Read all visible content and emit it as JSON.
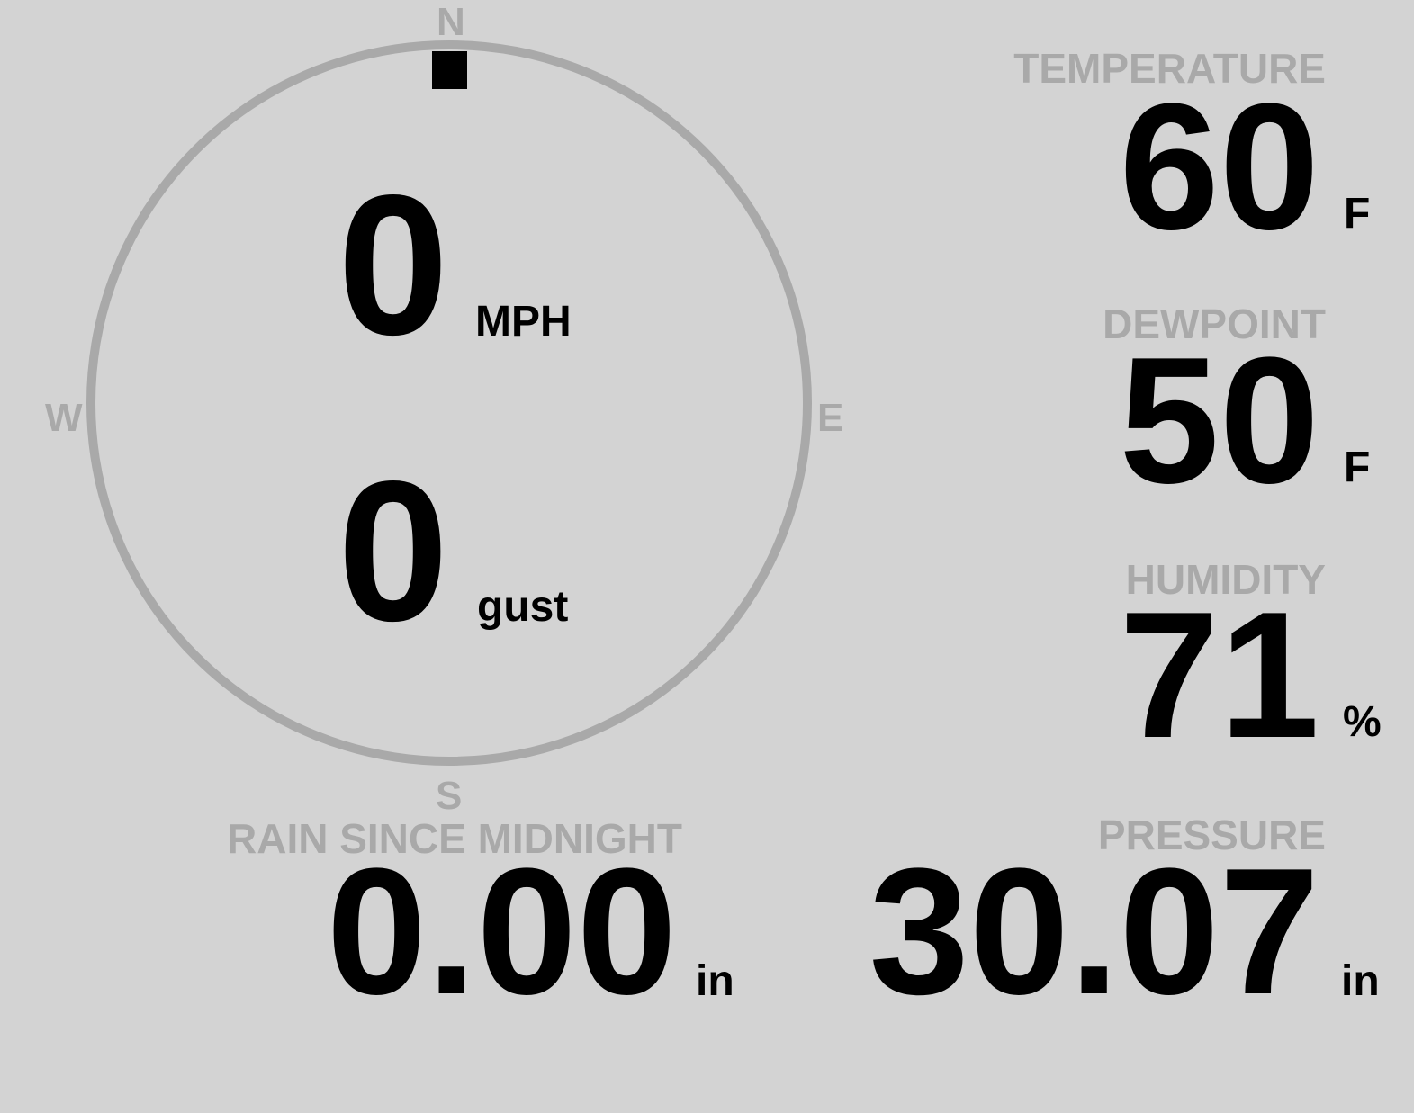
{
  "colors": {
    "background": "#d3d3d3",
    "label": "#a9a9a9",
    "value": "#000000",
    "wind_marker": "#000000"
  },
  "compass": {
    "north": "N",
    "east": "E",
    "south": "S",
    "west": "W",
    "wind_direction_degrees": 0
  },
  "wind": {
    "speed": "0",
    "speed_unit": "MPH",
    "gust": "0",
    "gust_unit": "gust"
  },
  "temperature": {
    "label": "TEMPERATURE",
    "value": "60",
    "unit": "F"
  },
  "dewpoint": {
    "label": "DEWPOINT",
    "value": "50",
    "unit": "F"
  },
  "humidity": {
    "label": "HUMIDITY",
    "value": "71",
    "unit": "%"
  },
  "rain": {
    "label": "RAIN SINCE MIDNIGHT",
    "value": "0.00",
    "unit": "in"
  },
  "pressure": {
    "label": "PRESSURE",
    "value": "30.07",
    "unit": "in"
  }
}
